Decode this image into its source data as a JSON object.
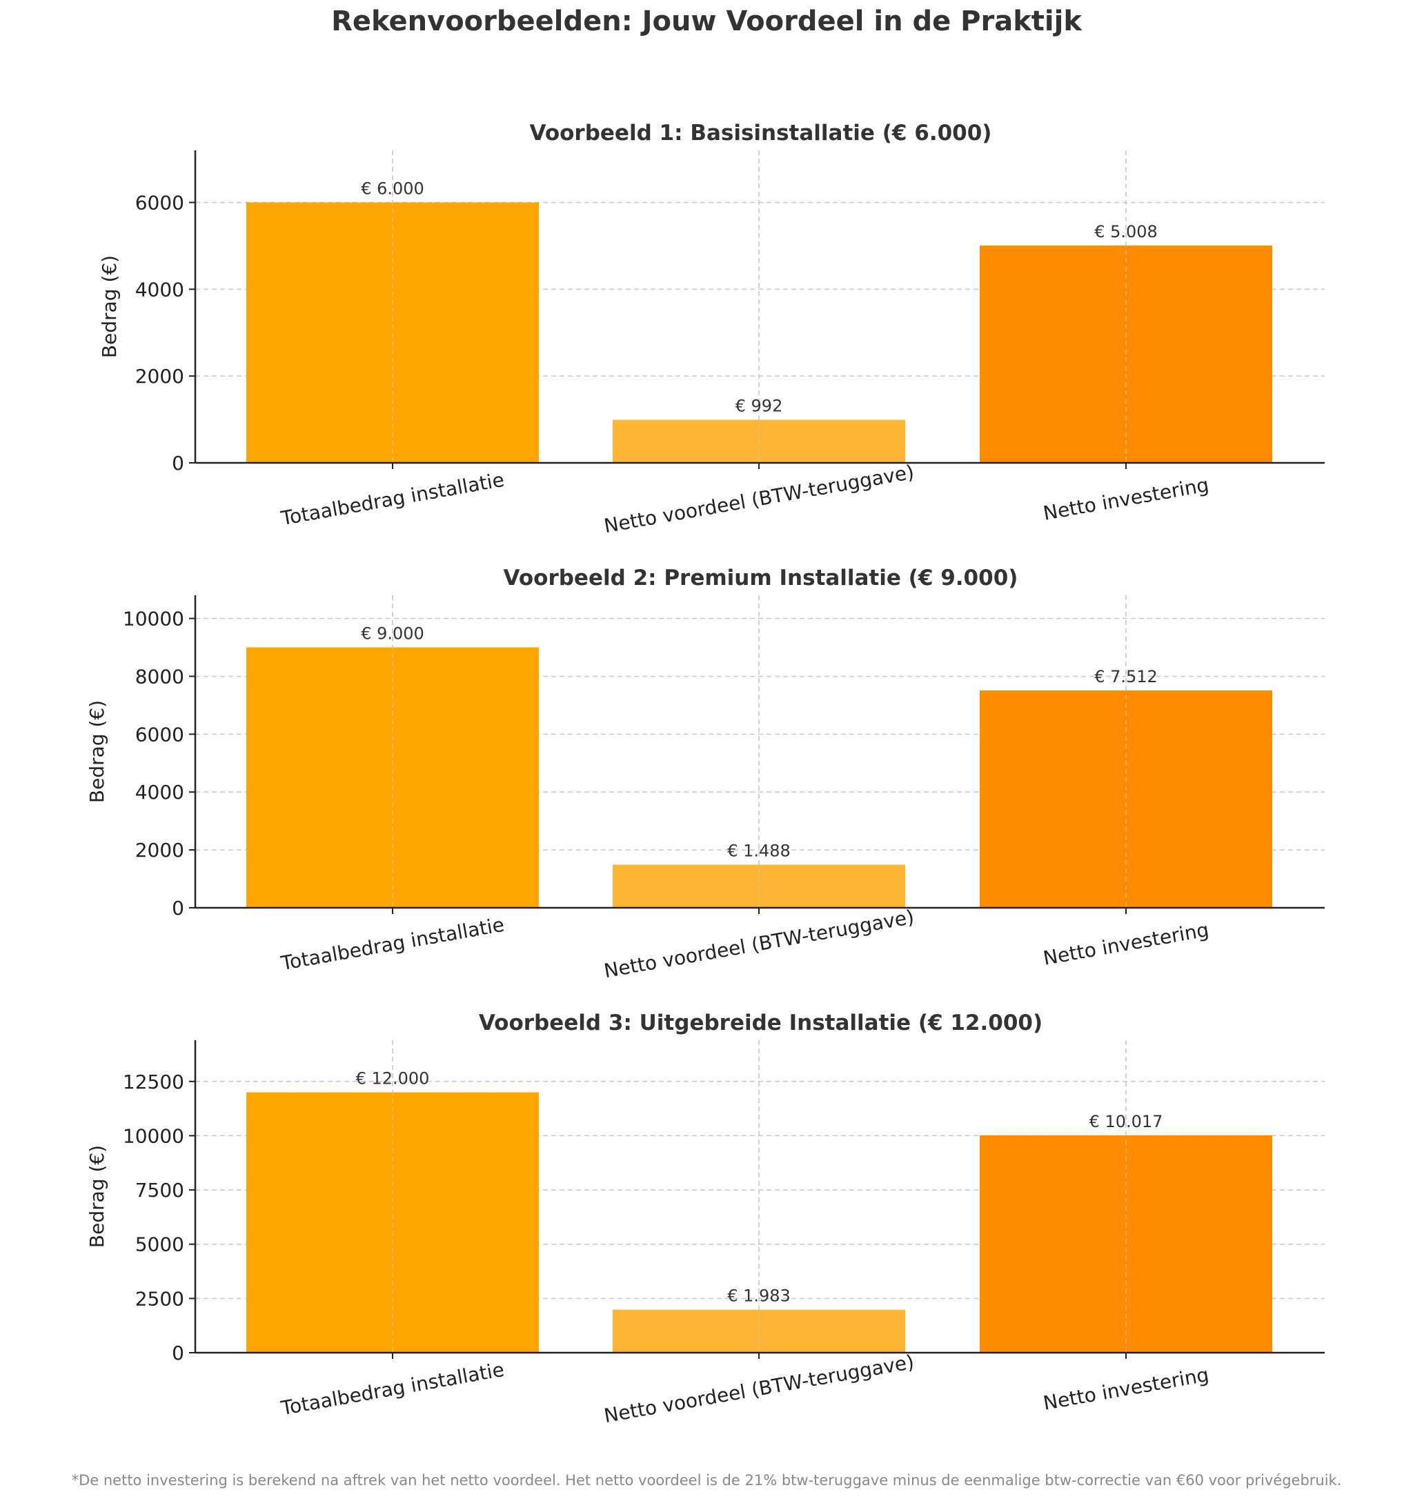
{
  "title": "Rekenvoorbeelden: Jouw Voordeel in de Praktijk",
  "footnote": "*De netto investering is berekend na aftrek van het netto voordeel. Het netto voordeel is de 21% btw-teruggave minus de eenmalige btw-correctie van €60 voor privégebruik.",
  "colors": {
    "bar1": "#FFA500",
    "bar2": "#FFB534",
    "bar3": "#FF8C00"
  },
  "chart_data": [
    {
      "type": "bar",
      "title": "Voorbeeld 1: Basisinstallatie (€ 6.000)",
      "ylabel": "Bedrag (€)",
      "categories": [
        "Totaalbedrag installatie",
        "Netto voordeel (BTW-teruggave)",
        "Netto investering"
      ],
      "values": [
        6000,
        992,
        5008
      ],
      "data_labels": [
        "€ 6.000",
        "€ 992",
        "€ 5.008"
      ],
      "ylim": [
        0,
        7200
      ],
      "yticks": [
        0,
        2000,
        4000,
        6000
      ],
      "grid": true
    },
    {
      "type": "bar",
      "title": "Voorbeeld 2: Premium Installatie (€ 9.000)",
      "ylabel": "Bedrag (€)",
      "categories": [
        "Totaalbedrag installatie",
        "Netto voordeel (BTW-teruggave)",
        "Netto investering"
      ],
      "values": [
        9000,
        1488,
        7512
      ],
      "data_labels": [
        "€ 9.000",
        "€ 1.488",
        "€ 7.512"
      ],
      "ylim": [
        0,
        10800
      ],
      "yticks": [
        0,
        2000,
        4000,
        6000,
        8000,
        10000
      ],
      "grid": true
    },
    {
      "type": "bar",
      "title": "Voorbeeld 3: Uitgebreide Installatie (€ 12.000)",
      "ylabel": "Bedrag (€)",
      "categories": [
        "Totaalbedrag installatie",
        "Netto voordeel (BTW-teruggave)",
        "Netto investering"
      ],
      "values": [
        12000,
        1983,
        10017
      ],
      "data_labels": [
        "€ 12.000",
        "€ 1.983",
        "€ 10.017"
      ],
      "ylim": [
        0,
        14400
      ],
      "yticks": [
        0,
        2500,
        5000,
        7500,
        10000,
        12500
      ],
      "grid": true
    }
  ]
}
